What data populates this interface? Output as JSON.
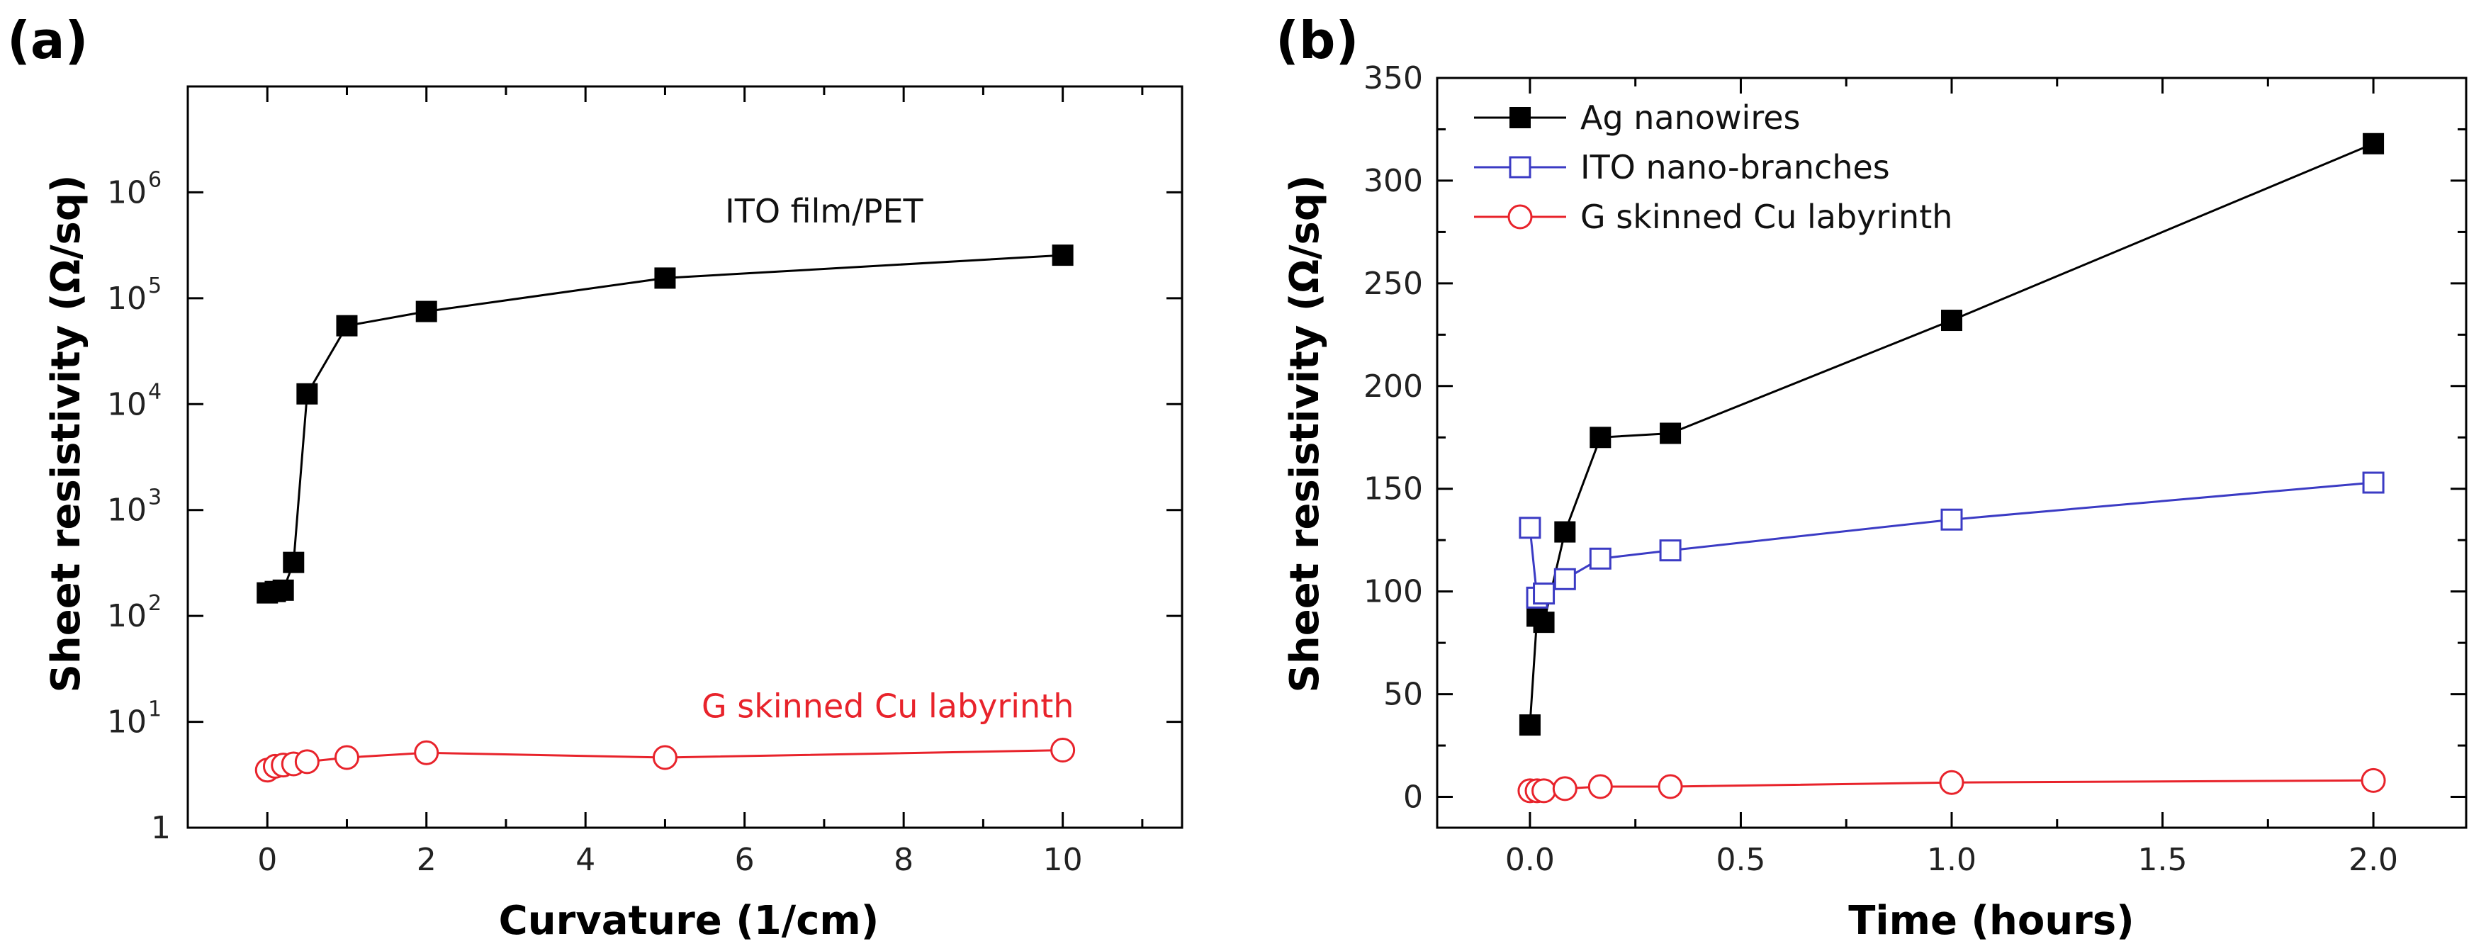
{
  "colors": {
    "black_series": "#000000",
    "blue_series": "#3b3bc4",
    "red_series": "#e8232b",
    "axis": "#000000"
  },
  "chart_data": [
    {
      "panel_label": "(a)",
      "type": "line",
      "xlabel": "Curvature (1/cm)",
      "ylabel": "Sheet resistivity (Ω/sq)",
      "xscale": "linear",
      "yscale": "log",
      "xlim": [
        -1,
        11.5
      ],
      "ylim": [
        1,
        10000000
      ],
      "xticks": [
        0,
        2,
        4,
        6,
        8,
        10
      ],
      "xtick_labels": [
        "0",
        "2",
        "4",
        "6",
        "8",
        "10"
      ],
      "yticks": [
        1,
        10,
        100,
        1000,
        10000,
        100000,
        1000000
      ],
      "ytick_labels": [
        {
          "base": "1",
          "exp": ""
        },
        {
          "base": "10",
          "exp": "1"
        },
        {
          "base": "10",
          "exp": "2"
        },
        {
          "base": "10",
          "exp": "3"
        },
        {
          "base": "10",
          "exp": "4"
        },
        {
          "base": "10",
          "exp": "5"
        },
        {
          "base": "10",
          "exp": "6"
        }
      ],
      "series": [
        {
          "name": "ITO film/PET",
          "color": "#000000",
          "marker": "square-filled",
          "x": [
            0,
            0.1,
            0.2,
            0.33,
            0.5,
            1,
            2,
            5,
            10
          ],
          "y": [
            165,
            170,
            175,
            320,
            12500,
            55000,
            75000,
            155000,
            255000
          ]
        },
        {
          "name": "G skinned Cu labyrinth",
          "color": "#e8232b",
          "marker": "circle-open",
          "x": [
            0,
            0.1,
            0.2,
            0.33,
            0.5,
            1,
            2,
            5,
            10
          ],
          "y": [
            3.5,
            3.8,
            3.9,
            4.0,
            4.2,
            4.6,
            5.1,
            4.6,
            5.4
          ]
        }
      ],
      "annotations": [
        {
          "text": "ITO film/PET",
          "color": "#111111",
          "x": 7.0,
          "y": 520000,
          "anchor": "middle"
        },
        {
          "text": "G skinned Cu labyrinth",
          "color": "#e8232b",
          "x": 7.8,
          "y": 11,
          "anchor": "middle"
        }
      ]
    },
    {
      "panel_label": "(b)",
      "type": "line",
      "xlabel": "Time (hours)",
      "ylabel": "Sheet resistivity (Ω/sq)",
      "xscale": "linear",
      "yscale": "linear",
      "xlim": [
        -0.22,
        2.22
      ],
      "ylim": [
        -15,
        350
      ],
      "xticks": [
        0.0,
        0.5,
        1.0,
        1.5,
        2.0
      ],
      "xtick_labels": [
        "0.0",
        "0.5",
        "1.0",
        "1.5",
        "2.0"
      ],
      "yticks": [
        0,
        50,
        100,
        150,
        200,
        250,
        300,
        350
      ],
      "ytick_labels": [
        "0",
        "50",
        "100",
        "150",
        "200",
        "250",
        "300",
        "350"
      ],
      "legend_position": "top-left",
      "series": [
        {
          "name": "Ag nanowires",
          "color": "#000000",
          "marker": "square-filled",
          "x": [
            0,
            0.017,
            0.033,
            0.083,
            0.167,
            0.333,
            1.0,
            2.0
          ],
          "y": [
            35,
            88,
            85,
            129,
            175,
            177,
            232,
            318
          ]
        },
        {
          "name": "ITO nano-branches",
          "color": "#3b3bc4",
          "marker": "square-open",
          "x": [
            0,
            0.017,
            0.033,
            0.083,
            0.167,
            0.333,
            1.0,
            2.0
          ],
          "y": [
            131,
            97,
            99,
            106,
            116,
            120,
            135,
            153
          ]
        },
        {
          "name": "G skinned Cu labyrinth",
          "color": "#e8232b",
          "marker": "circle-open",
          "x": [
            0,
            0.017,
            0.033,
            0.083,
            0.167,
            0.333,
            1.0,
            2.0
          ],
          "y": [
            3,
            3,
            3,
            4,
            5,
            5,
            7,
            8
          ]
        }
      ]
    }
  ]
}
